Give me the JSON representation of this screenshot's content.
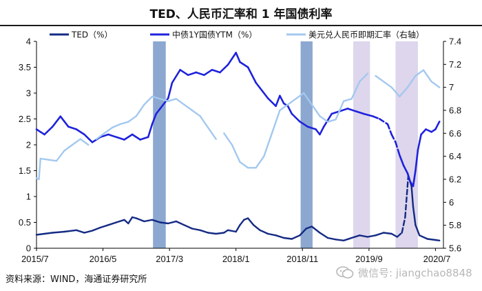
{
  "header": {
    "title": "TED、人民币汇率和 1 年国债利率"
  },
  "footer": {
    "source": "资料来源：WIND，海通证券研究所"
  },
  "watermark": {
    "label": "微信号: jiangchao8848",
    "icon": "wechat-icon"
  },
  "chart_data": {
    "type": "line",
    "title": "TED、人民币汇率和 1 年国债利率",
    "x_range": [
      2015.5,
      2020.6
    ],
    "x_tick_labels": [
      {
        "label": "2015/7",
        "t": 2015.5
      },
      {
        "label": "2016/5",
        "t": 2016.333
      },
      {
        "label": "2017/3",
        "t": 2017.167
      },
      {
        "label": "2018/1",
        "t": 2018.0
      },
      {
        "label": "2018/11",
        "t": 2018.833
      },
      {
        "label": "2019/9",
        "t": 2019.667
      },
      {
        "label": "2020/7",
        "t": 2020.5
      }
    ],
    "y_left": {
      "min": 0,
      "max": 4,
      "ticks": [
        "0",
        "0.5",
        "1",
        "1.5",
        "2",
        "2.5",
        "3",
        "3.5",
        "4"
      ]
    },
    "y_right": {
      "min": 5.6,
      "max": 7.4,
      "ticks": [
        "5.6",
        "5.8",
        "6",
        "6.2",
        "6.4",
        "6.6",
        "6.8",
        "7",
        "7.2",
        "7.4"
      ],
      "label": "右轴"
    },
    "shaded_periods": [
      {
        "start": 2016.96,
        "end": 2017.12,
        "color": "#7f9fcc"
      },
      {
        "start": 2018.81,
        "end": 2018.96,
        "color": "#7f9fcc"
      },
      {
        "start": 2019.47,
        "end": 2019.68,
        "color": "#d9d2ea"
      },
      {
        "start": 2020.0,
        "end": 2020.28,
        "color": "#d9d2ea"
      }
    ],
    "series": [
      {
        "name": "TED（%）",
        "axis": "left",
        "color": "#142a84",
        "width": 2.4,
        "dash_after": [
          2020.02,
          2020.15
        ],
        "points": [
          [
            2015.5,
            0.26
          ],
          [
            2015.6,
            0.28
          ],
          [
            2015.7,
            0.3
          ],
          [
            2015.85,
            0.32
          ],
          [
            2016.0,
            0.35
          ],
          [
            2016.1,
            0.3
          ],
          [
            2016.2,
            0.34
          ],
          [
            2016.3,
            0.4
          ],
          [
            2016.4,
            0.45
          ],
          [
            2016.5,
            0.5
          ],
          [
            2016.6,
            0.55
          ],
          [
            2016.65,
            0.48
          ],
          [
            2016.7,
            0.6
          ],
          [
            2016.75,
            0.58
          ],
          [
            2016.85,
            0.52
          ],
          [
            2016.95,
            0.55
          ],
          [
            2017.05,
            0.5
          ],
          [
            2017.15,
            0.48
          ],
          [
            2017.25,
            0.52
          ],
          [
            2017.35,
            0.45
          ],
          [
            2017.45,
            0.38
          ],
          [
            2017.55,
            0.35
          ],
          [
            2017.65,
            0.3
          ],
          [
            2017.75,
            0.28
          ],
          [
            2017.85,
            0.3
          ],
          [
            2017.9,
            0.35
          ],
          [
            2018.0,
            0.32
          ],
          [
            2018.05,
            0.45
          ],
          [
            2018.1,
            0.55
          ],
          [
            2018.15,
            0.58
          ],
          [
            2018.22,
            0.45
          ],
          [
            2018.3,
            0.35
          ],
          [
            2018.4,
            0.28
          ],
          [
            2018.5,
            0.25
          ],
          [
            2018.6,
            0.2
          ],
          [
            2018.7,
            0.18
          ],
          [
            2018.8,
            0.25
          ],
          [
            2018.88,
            0.38
          ],
          [
            2018.95,
            0.42
          ],
          [
            2019.05,
            0.3
          ],
          [
            2019.15,
            0.2
          ],
          [
            2019.25,
            0.17
          ],
          [
            2019.35,
            0.15
          ],
          [
            2019.45,
            0.2
          ],
          [
            2019.55,
            0.25
          ],
          [
            2019.65,
            0.22
          ],
          [
            2019.75,
            0.25
          ],
          [
            2019.85,
            0.3
          ],
          [
            2019.95,
            0.28
          ],
          [
            2020.02,
            0.22
          ],
          [
            2020.08,
            0.3
          ],
          [
            2020.12,
            0.6
          ],
          [
            2020.16,
            1.41
          ],
          [
            2020.2,
            1.2
          ],
          [
            2020.22,
            0.8
          ],
          [
            2020.25,
            0.45
          ],
          [
            2020.3,
            0.25
          ],
          [
            2020.4,
            0.18
          ],
          [
            2020.5,
            0.16
          ],
          [
            2020.55,
            0.15
          ]
        ]
      },
      {
        "name": "中债1Y国债YTM（%）",
        "axis": "left",
        "color": "#1e22dc",
        "width": 2.6,
        "dash_after": [
          2019.72,
          2020.05
        ],
        "points": [
          [
            2015.5,
            2.3
          ],
          [
            2015.55,
            2.25
          ],
          [
            2015.6,
            2.2
          ],
          [
            2015.7,
            2.35
          ],
          [
            2015.8,
            2.55
          ],
          [
            2015.85,
            2.45
          ],
          [
            2015.9,
            2.35
          ],
          [
            2016.0,
            2.3
          ],
          [
            2016.1,
            2.2
          ],
          [
            2016.2,
            2.05
          ],
          [
            2016.3,
            2.15
          ],
          [
            2016.4,
            2.2
          ],
          [
            2016.5,
            2.15
          ],
          [
            2016.6,
            2.1
          ],
          [
            2016.7,
            2.2
          ],
          [
            2016.8,
            2.1
          ],
          [
            2016.9,
            2.15
          ],
          [
            2016.95,
            2.4
          ],
          [
            2017.0,
            2.6
          ],
          [
            2017.05,
            2.7
          ],
          [
            2017.1,
            2.8
          ],
          [
            2017.15,
            2.9
          ],
          [
            2017.2,
            3.2
          ],
          [
            2017.3,
            3.45
          ],
          [
            2017.4,
            3.35
          ],
          [
            2017.5,
            3.4
          ],
          [
            2017.6,
            3.35
          ],
          [
            2017.7,
            3.45
          ],
          [
            2017.8,
            3.4
          ],
          [
            2017.9,
            3.55
          ],
          [
            2018.0,
            3.78
          ],
          [
            2018.05,
            3.6
          ],
          [
            2018.15,
            3.5
          ],
          [
            2018.25,
            3.2
          ],
          [
            2018.3,
            3.1
          ],
          [
            2018.4,
            2.9
          ],
          [
            2018.5,
            2.75
          ],
          [
            2018.55,
            2.95
          ],
          [
            2018.6,
            2.8
          ],
          [
            2018.65,
            2.75
          ],
          [
            2018.7,
            2.6
          ],
          [
            2018.8,
            2.45
          ],
          [
            2018.9,
            2.35
          ],
          [
            2019.0,
            2.3
          ],
          [
            2019.05,
            2.2
          ],
          [
            2019.1,
            2.35
          ],
          [
            2019.2,
            2.6
          ],
          [
            2019.3,
            2.65
          ],
          [
            2019.4,
            2.7
          ],
          [
            2019.5,
            2.65
          ],
          [
            2019.6,
            2.6
          ],
          [
            2019.72,
            2.55
          ],
          [
            2019.8,
            2.5
          ],
          [
            2019.9,
            2.4
          ],
          [
            2019.95,
            2.2
          ],
          [
            2020.0,
            2.05
          ],
          [
            2020.05,
            1.8
          ],
          [
            2020.1,
            1.6
          ],
          [
            2020.15,
            1.45
          ],
          [
            2020.18,
            1.3
          ],
          [
            2020.22,
            1.2
          ],
          [
            2020.25,
            1.5
          ],
          [
            2020.28,
            1.9
          ],
          [
            2020.32,
            2.2
          ],
          [
            2020.38,
            2.3
          ],
          [
            2020.45,
            2.25
          ],
          [
            2020.5,
            2.3
          ],
          [
            2020.55,
            2.45
          ]
        ]
      },
      {
        "name": "美元兑人民币即期汇率（右轴）",
        "axis": "right",
        "color": "#a3c8ef",
        "width": 2.4,
        "gaps": [
          [
            2016.2,
            2016.22
          ],
          [
            2017.8,
            2017.82
          ],
          [
            2019.7,
            2019.72
          ]
        ],
        "points": [
          [
            2015.5,
            6.21
          ],
          [
            2015.53,
            6.2
          ],
          [
            2015.55,
            6.38
          ],
          [
            2015.65,
            6.37
          ],
          [
            2015.75,
            6.36
          ],
          [
            2015.85,
            6.45
          ],
          [
            2015.95,
            6.5
          ],
          [
            2016.05,
            6.55
          ],
          [
            2016.15,
            6.5
          ],
          [
            2016.25,
            6.55
          ],
          [
            2016.35,
            6.6
          ],
          [
            2016.45,
            6.65
          ],
          [
            2016.55,
            6.68
          ],
          [
            2016.65,
            6.7
          ],
          [
            2016.75,
            6.75
          ],
          [
            2016.85,
            6.85
          ],
          [
            2016.95,
            6.92
          ],
          [
            2017.05,
            6.9
          ],
          [
            2017.15,
            6.88
          ],
          [
            2017.25,
            6.9
          ],
          [
            2017.35,
            6.85
          ],
          [
            2017.45,
            6.8
          ],
          [
            2017.55,
            6.75
          ],
          [
            2017.65,
            6.65
          ],
          [
            2017.75,
            6.55
          ],
          [
            2017.85,
            6.6
          ],
          [
            2017.95,
            6.5
          ],
          [
            2018.05,
            6.35
          ],
          [
            2018.15,
            6.3
          ],
          [
            2018.25,
            6.3
          ],
          [
            2018.35,
            6.4
          ],
          [
            2018.45,
            6.6
          ],
          [
            2018.55,
            6.8
          ],
          [
            2018.65,
            6.85
          ],
          [
            2018.75,
            6.9
          ],
          [
            2018.85,
            6.95
          ],
          [
            2018.95,
            6.85
          ],
          [
            2019.05,
            6.75
          ],
          [
            2019.15,
            6.7
          ],
          [
            2019.25,
            6.72
          ],
          [
            2019.35,
            6.88
          ],
          [
            2019.45,
            6.9
          ],
          [
            2019.55,
            7.05
          ],
          [
            2019.65,
            7.12
          ],
          [
            2019.75,
            7.1
          ],
          [
            2019.85,
            7.05
          ],
          [
            2019.95,
            7.0
          ],
          [
            2020.05,
            6.92
          ],
          [
            2020.15,
            7.0
          ],
          [
            2020.25,
            7.1
          ],
          [
            2020.35,
            7.15
          ],
          [
            2020.45,
            7.05
          ],
          [
            2020.55,
            7.0
          ]
        ]
      }
    ]
  }
}
